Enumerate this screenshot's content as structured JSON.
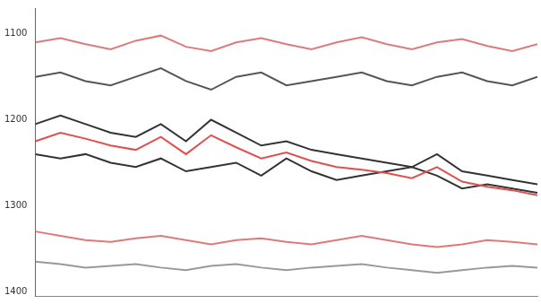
{
  "chart_data": {
    "type": "line",
    "x": [
      0,
      5,
      10,
      15,
      20,
      25,
      30,
      35,
      40,
      45,
      50,
      55,
      60,
      65,
      70,
      75,
      80,
      85,
      90,
      95,
      100
    ],
    "xlim": [
      0,
      100
    ],
    "ylim": [
      1405,
      1070
    ],
    "yticks": [
      1100,
      1200,
      1300,
      1400
    ],
    "grid": false,
    "tick_labels": "y",
    "series": [
      {
        "color": "#e07a7a",
        "values": [
          1110,
          1105,
          1112,
          1118,
          1108,
          1102,
          1115,
          1120,
          1110,
          1105,
          1112,
          1118,
          1110,
          1104,
          1112,
          1118,
          1110,
          1106,
          1114,
          1120,
          1112
        ]
      },
      {
        "color": "#555555",
        "values": [
          1150,
          1145,
          1155,
          1160,
          1150,
          1140,
          1155,
          1165,
          1150,
          1145,
          1160,
          1155,
          1150,
          1145,
          1155,
          1160,
          1150,
          1145,
          1155,
          1160,
          1150
        ]
      },
      {
        "color": "#333333",
        "values": [
          1205,
          1195,
          1205,
          1215,
          1220,
          1205,
          1225,
          1200,
          1215,
          1230,
          1225,
          1235,
          1240,
          1245,
          1250,
          1255,
          1240,
          1260,
          1265,
          1270,
          1275
        ]
      },
      {
        "color": "#e05050",
        "values": [
          1225,
          1215,
          1222,
          1230,
          1235,
          1220,
          1240,
          1218,
          1232,
          1245,
          1238,
          1248,
          1255,
          1258,
          1262,
          1268,
          1255,
          1272,
          1278,
          1282,
          1288
        ]
      },
      {
        "color": "#333333",
        "values": [
          1240,
          1245,
          1240,
          1250,
          1255,
          1245,
          1260,
          1255,
          1250,
          1265,
          1245,
          1260,
          1270,
          1265,
          1260,
          1255,
          1265,
          1280,
          1275,
          1280,
          1285
        ]
      },
      {
        "color": "#e07a7a",
        "values": [
          1330,
          1335,
          1340,
          1342,
          1338,
          1335,
          1340,
          1345,
          1340,
          1338,
          1342,
          1345,
          1340,
          1335,
          1340,
          1345,
          1348,
          1345,
          1340,
          1342,
          1345
        ]
      },
      {
        "color": "#999999",
        "values": [
          1365,
          1368,
          1372,
          1370,
          1368,
          1372,
          1375,
          1370,
          1368,
          1372,
          1375,
          1372,
          1370,
          1368,
          1372,
          1375,
          1378,
          1375,
          1372,
          1370,
          1372
        ]
      }
    ]
  }
}
